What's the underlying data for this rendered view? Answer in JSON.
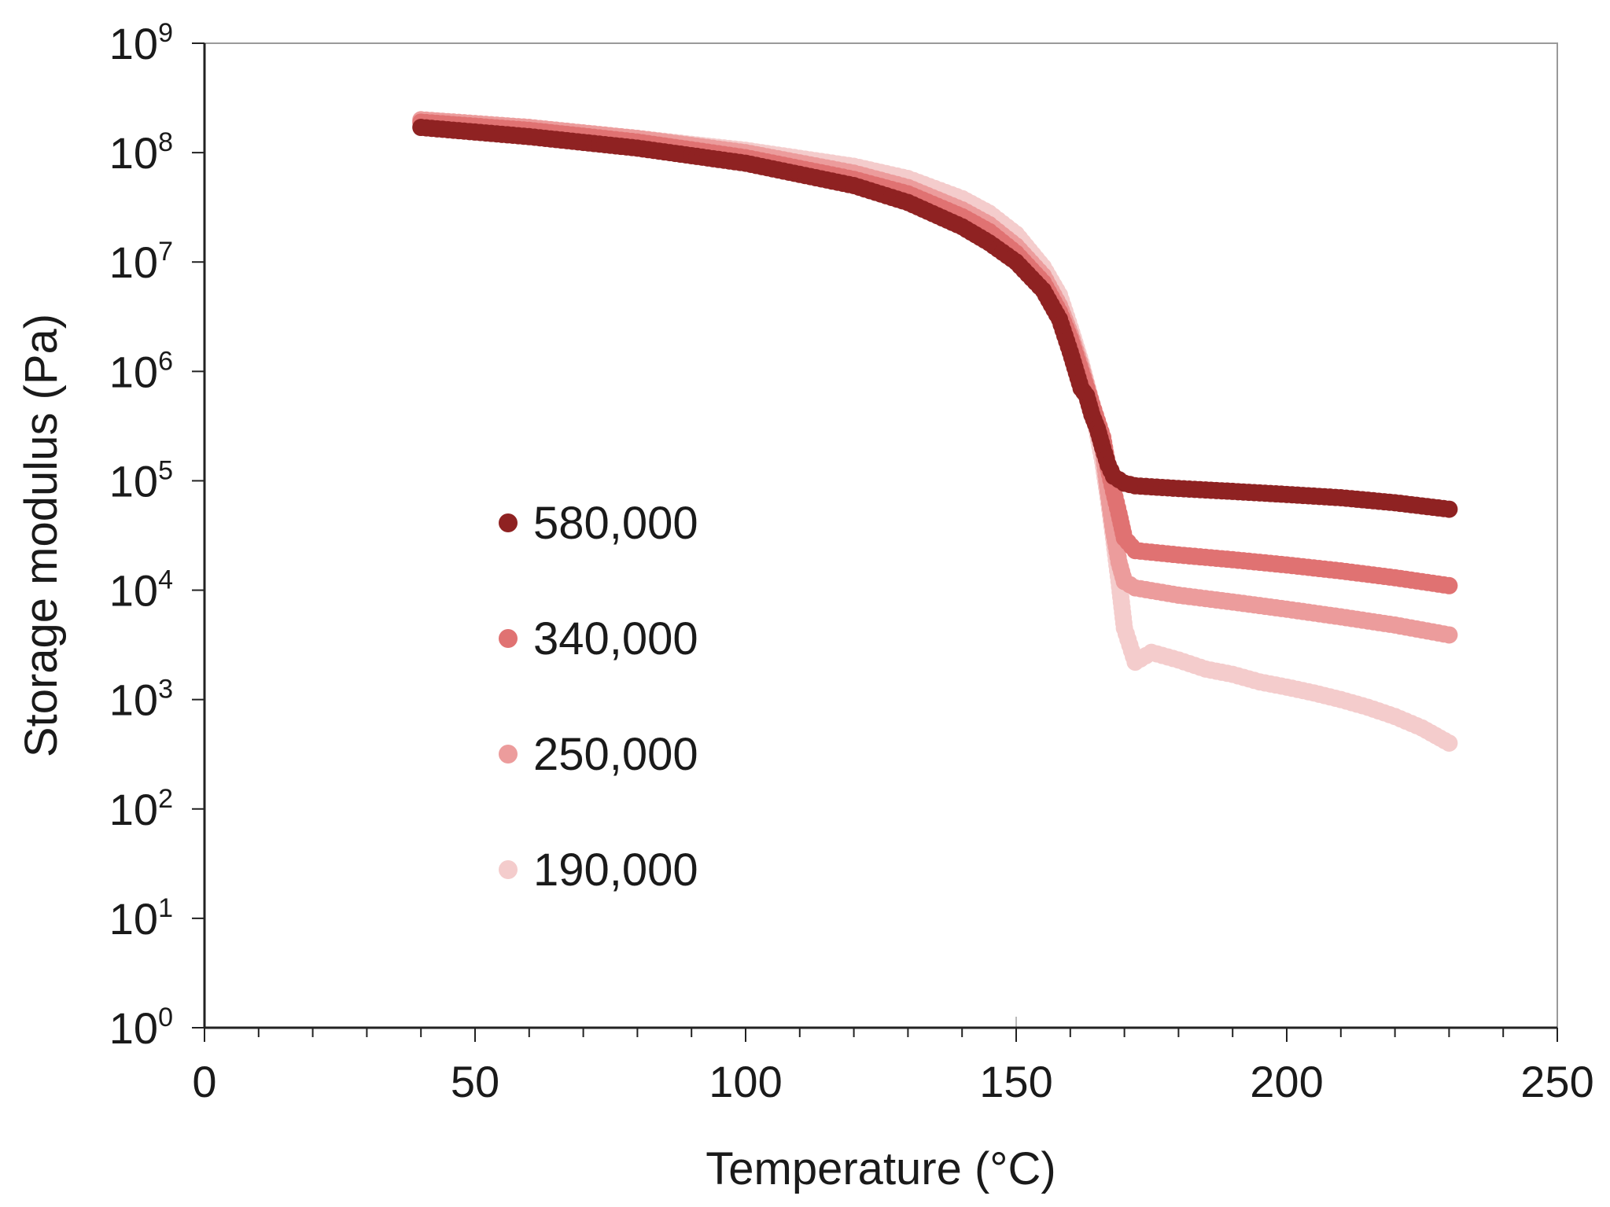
{
  "chart_data": {
    "type": "scatter",
    "title": "",
    "xlabel": "Temperature (°C)",
    "ylabel": "Storage modulus (Pa)",
    "xlim": [
      0,
      250
    ],
    "x_ticks": [
      0,
      50,
      100,
      150,
      200,
      250
    ],
    "x_tick_labels": [
      "0",
      "50",
      "100",
      "150",
      "200",
      "250"
    ],
    "y_scale": "log",
    "ylim": [
      1,
      1000000000
    ],
    "y_tick_exponents": [
      0,
      1,
      2,
      3,
      4,
      5,
      6,
      7,
      8,
      9
    ],
    "y_tick_base": "10",
    "y_tick_exponent_labels": [
      "0",
      "1",
      "2",
      "3",
      "4",
      "5",
      "6",
      "7",
      "8",
      "9"
    ],
    "legend_placement": "center-left",
    "series": [
      {
        "name": "580,000",
        "color": "#8f2222",
        "x": [
          40,
          60,
          80,
          100,
          120,
          130,
          140,
          145,
          150,
          155,
          158,
          160,
          162,
          163,
          164,
          165,
          166,
          167,
          168,
          170,
          172,
          180,
          190,
          200,
          210,
          220,
          230
        ],
        "y": [
          170000000,
          140000000,
          110000000,
          80000000,
          50000000,
          35000000,
          21000000,
          15000000,
          10000000,
          5500000,
          3000000,
          1500000,
          700000,
          600000,
          400000,
          300000,
          200000,
          140000,
          110000,
          95000,
          90000,
          85000,
          80000,
          75000,
          70000,
          63000,
          55000
        ]
      },
      {
        "name": "340,000",
        "color": "#e07272",
        "x": [
          40,
          60,
          80,
          100,
          120,
          130,
          140,
          145,
          150,
          155,
          158,
          160,
          162,
          164,
          166,
          167,
          168,
          169,
          170,
          172,
          180,
          190,
          200,
          210,
          220,
          230
        ],
        "y": [
          190000000,
          160000000,
          125000000,
          90000000,
          57000000,
          42000000,
          26000000,
          19000000,
          12000000,
          6500000,
          3500000,
          2000000,
          1000000,
          500000,
          250000,
          130000,
          80000,
          50000,
          30000,
          23000,
          21000,
          19000,
          17000,
          15000,
          13000,
          11000
        ]
      },
      {
        "name": "250,000",
        "color": "#ec9c9c",
        "x": [
          40,
          60,
          80,
          100,
          120,
          130,
          140,
          145,
          150,
          155,
          158,
          160,
          162,
          164,
          166,
          167,
          168,
          169,
          170,
          172,
          180,
          190,
          200,
          210,
          220,
          230
        ],
        "y": [
          200000000,
          170000000,
          135000000,
          100000000,
          65000000,
          48000000,
          30000000,
          22000000,
          14000000,
          7500000,
          4000000,
          2200000,
          1100000,
          500000,
          200000,
          80000,
          35000,
          18000,
          12000,
          10500,
          9000,
          7800,
          6700,
          5700,
          4800,
          3900
        ]
      },
      {
        "name": "190,000",
        "color": "#f4cccc",
        "x": [
          40,
          60,
          80,
          100,
          120,
          130,
          140,
          145,
          150,
          155,
          158,
          160,
          162,
          164,
          166,
          167,
          168,
          169,
          170,
          172,
          175,
          180,
          185,
          190,
          195,
          200,
          205,
          210,
          215,
          220,
          225,
          230
        ],
        "y": [
          180000000,
          160000000,
          135000000,
          105000000,
          75000000,
          58000000,
          38000000,
          28000000,
          18000000,
          9000000,
          5000000,
          2500000,
          1200000,
          500000,
          150000,
          70000,
          30000,
          12000,
          4500,
          2200,
          2700,
          2300,
          1900,
          1700,
          1450,
          1300,
          1150,
          1000,
          850,
          700,
          550,
          400
        ]
      }
    ]
  }
}
